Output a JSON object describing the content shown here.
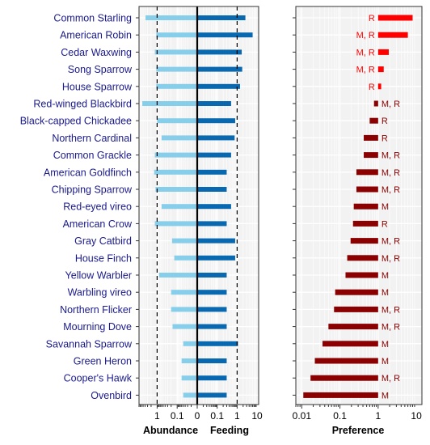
{
  "chart_data": [
    {
      "type": "bar",
      "panel": "abundance-feeding",
      "categories": [
        "Common Starling",
        "American Robin",
        "Cedar Waxwing",
        "Song Sparrow",
        "House Sparrow",
        "Red-winged Blackbird",
        "Black-capped Chickadee",
        "Northern Cardinal",
        "Common Grackle",
        "American Goldfinch",
        "Chipping Sparrow",
        "Red-eyed vireo",
        "American Crow",
        "Gray Catbird",
        "House Finch",
        "Yellow Warbler",
        "Warbling vireo",
        "Northern Flicker",
        "Mourning Dove",
        "Savannah Sparrow",
        "Green Heron",
        "Cooper's Hawk",
        "Ovenbird"
      ],
      "xlabel_left": "Abundance",
      "xlabel_right": "Feeding",
      "x_ticks_left": [
        "1",
        "0.1",
        "0"
      ],
      "x_ticks_right": [
        "0.1",
        "1",
        "10"
      ],
      "xlim_left": [
        8,
        0.01
      ],
      "xlim_right": [
        0.01,
        12
      ],
      "reference_line": 1,
      "grid": true,
      "series": [
        {
          "color": "#87ceeb",
          "values": [
            3.8,
            1.1,
            1.3,
            1.1,
            1.1,
            5.5,
            1.0,
            0.6,
            1.3,
            1.4,
            1.2,
            0.6,
            1.3,
            0.18,
            0.14,
            0.8,
            0.2,
            0.2,
            0.17,
            0.05,
            0.06,
            0.06,
            0.05
          ]
        },
        {
          "color": "#0868b0",
          "values": [
            2.6,
            6.0,
            1.7,
            1.8,
            1.4,
            0.5,
            0.8,
            0.75,
            0.5,
            0.3,
            0.3,
            0.5,
            0.3,
            0.8,
            0.8,
            0.3,
            0.3,
            0.3,
            0.3,
            1.1,
            0.3,
            0.3,
            0.3
          ]
        }
      ]
    },
    {
      "type": "bar",
      "panel": "preference",
      "categories": [
        "Common Starling",
        "American Robin",
        "Cedar Waxwing",
        "Song Sparrow",
        "House Sparrow",
        "Red-winged Blackbird",
        "Black-capped Chickadee",
        "Northern Cardinal",
        "Common Grackle",
        "American Goldfinch",
        "Chipping Sparrow",
        "Red-eyed vireo",
        "American Crow",
        "Gray Catbird",
        "House Finch",
        "Yellow Warbler",
        "Warbling vireo",
        "Northern Flicker",
        "Mourning Dove",
        "Savannah Sparrow",
        "Green Heron",
        "Cooper's Hawk",
        "Ovenbird"
      ],
      "values": [
        8.0,
        6.0,
        1.9,
        1.4,
        1.2,
        0.78,
        0.6,
        0.42,
        0.42,
        0.27,
        0.27,
        0.23,
        0.22,
        0.19,
        0.155,
        0.14,
        0.075,
        0.07,
        0.05,
        0.035,
        0.022,
        0.017,
        0.011
      ],
      "labels": [
        "R",
        "M, R",
        "M, R",
        "M, R",
        "R",
        "M, R",
        "R",
        "R",
        "M, R",
        "M, R",
        "M, R",
        "M",
        "R",
        "M, R",
        "M, R",
        "M",
        "M",
        "M, R",
        "M, R",
        "M",
        "M",
        "M, R",
        "M"
      ],
      "baseline": 1,
      "xlabel": "Preference",
      "x_ticks": [
        "0.01",
        "0.1",
        "1",
        "10"
      ],
      "xlim": [
        0.007,
        14
      ],
      "log_scale": true,
      "grid": true,
      "color_above": "#ff0000",
      "color_below": "#8b0000"
    }
  ]
}
